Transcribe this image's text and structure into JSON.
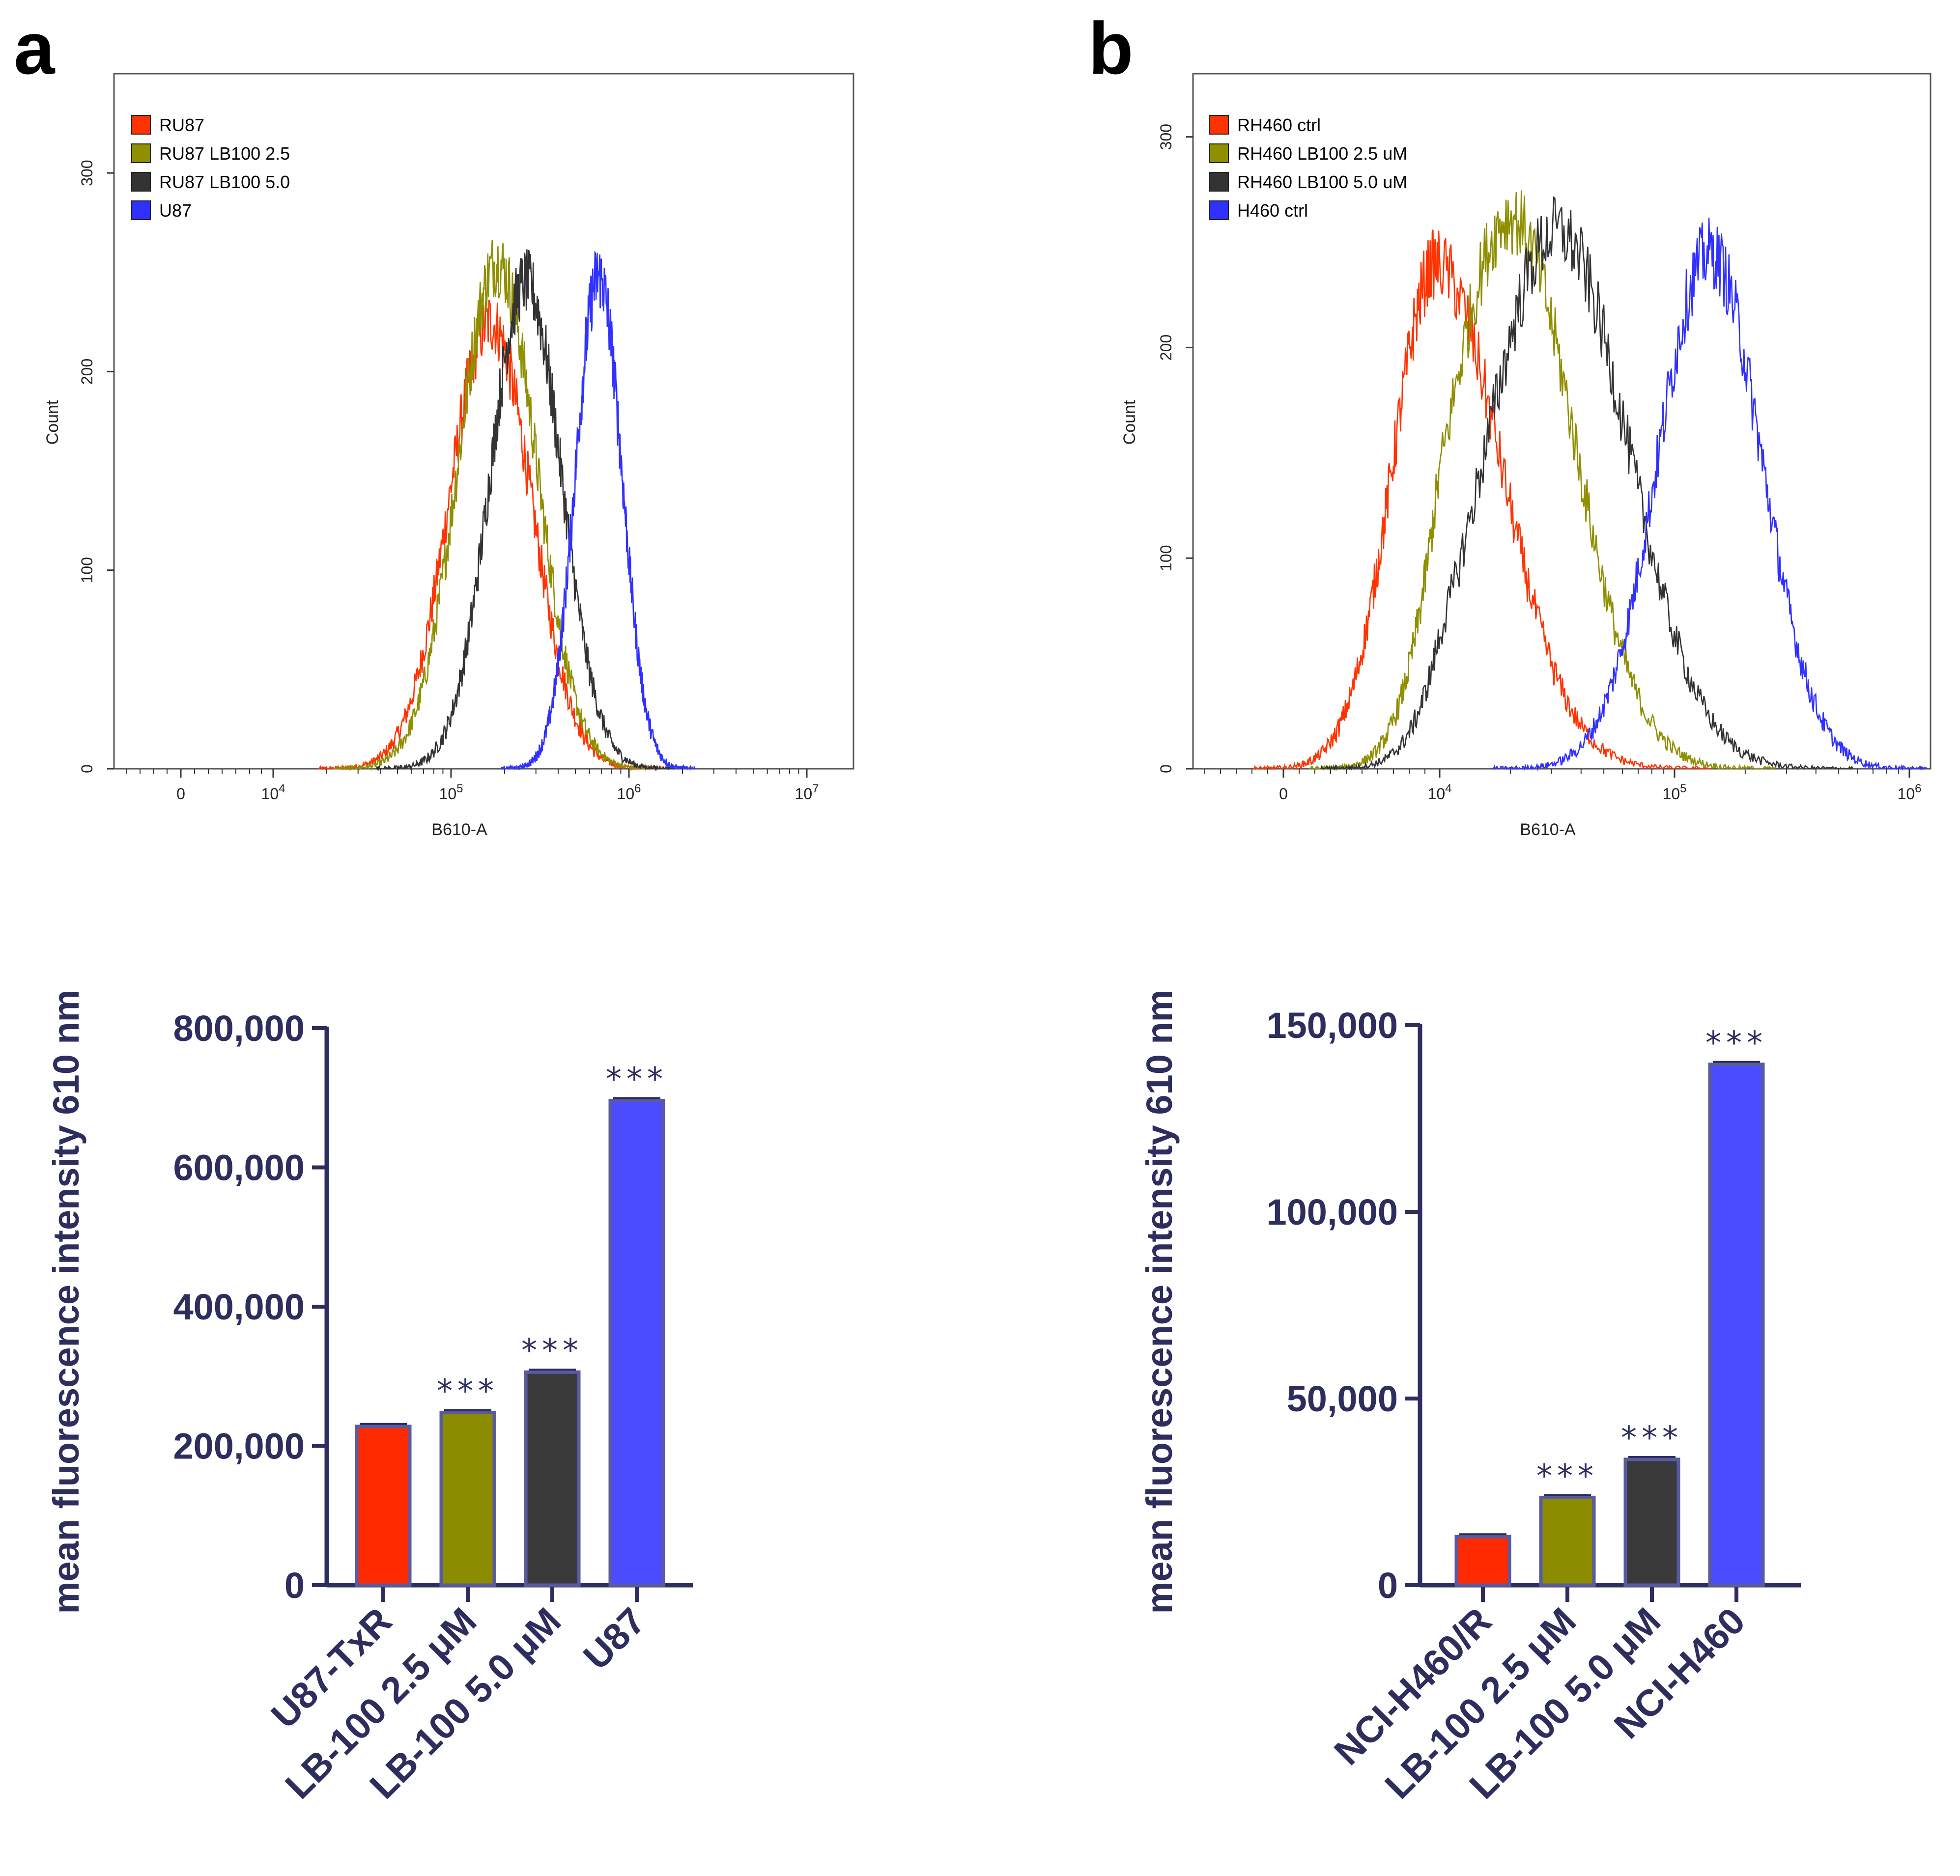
{
  "colors": {
    "red": "#ff2a00",
    "olive": "#8b8c00",
    "dark": "#3a3a3a",
    "blue": "#4b4bff",
    "navy": "#2d2d5e",
    "line_red": "#ff3300",
    "line_olive": "#8f8f00",
    "line_dark": "#333333",
    "line_blue": "#3030ff"
  },
  "chart_data": [
    {
      "panel": "a",
      "type": "line",
      "title": "",
      "xlabel": "B610-A",
      "ylabel": "Count",
      "ylim": [
        0,
        350
      ],
      "y_ticks": [
        0,
        100,
        200,
        300
      ],
      "x_scale": "log",
      "x_ticks": [
        "0",
        "10^4",
        "10^5",
        "10^6",
        "10^7"
      ],
      "series": [
        {
          "name": "RU87",
          "color_key": "line_red",
          "center_log": 5.22,
          "sigma": 0.23,
          "peak": 225
        },
        {
          "name": "RU87 LB100 2.5",
          "color_key": "line_olive",
          "center_log": 5.26,
          "sigma": 0.22,
          "peak": 255
        },
        {
          "name": "RU87 LB100 5.0",
          "color_key": "line_dark",
          "center_log": 5.42,
          "sigma": 0.2,
          "peak": 245
        },
        {
          "name": "U87",
          "color_key": "line_blue",
          "center_log": 5.83,
          "sigma": 0.13,
          "peak": 248
        }
      ]
    },
    {
      "panel": "b",
      "type": "line",
      "title": "",
      "xlabel": "B610-A",
      "ylabel": "Count",
      "ylim": [
        0,
        330
      ],
      "y_ticks": [
        0,
        100,
        200,
        300
      ],
      "x_scale": "log",
      "x_ticks": [
        "0",
        "10^4",
        "10^5",
        "10^6"
      ],
      "series": [
        {
          "name": "RH460 ctrl",
          "color_key": "line_red",
          "center_log": 3.98,
          "sigma": 0.28,
          "peak": 240
        },
        {
          "name": "RH460 LB100 2.5 uM",
          "color_key": "line_olive",
          "center_log": 4.3,
          "sigma": 0.27,
          "peak": 262
        },
        {
          "name": "RH460 LB100 5.0 uM",
          "color_key": "line_dark",
          "center_log": 4.5,
          "sigma": 0.3,
          "peak": 255
        },
        {
          "name": "H460 ctrl",
          "color_key": "line_blue",
          "center_log": 5.15,
          "sigma": 0.22,
          "peak": 245
        }
      ]
    },
    {
      "panel": "a-bar",
      "type": "bar",
      "title": "",
      "xlabel": "",
      "ylabel": "mean fluorescence intensity 610 nm",
      "ylim": [
        0,
        800000
      ],
      "y_ticks": [
        "0",
        "200,000",
        "400,000",
        "600,000",
        "800,000"
      ],
      "categories": [
        "U87-TxR",
        "LB-100 2.5 μM",
        "LB-100 5.0 μM",
        "U87"
      ],
      "values": [
        228000,
        248000,
        306000,
        696000
      ],
      "significance": [
        "",
        "***",
        "***",
        "***"
      ]
    },
    {
      "panel": "b-bar",
      "type": "bar",
      "title": "",
      "xlabel": "",
      "ylabel": "mean fluorescence intensity 610 nm",
      "ylim": [
        0,
        150000
      ],
      "y_ticks": [
        "0",
        "50,000",
        "100,000",
        "150,000"
      ],
      "categories": [
        "NCI-H460/R",
        "LB-100 2.5 μM",
        "LB-100 5.0 μM",
        "NCI-H460"
      ],
      "values": [
        13000,
        23500,
        33700,
        139500
      ],
      "significance": [
        "",
        "***",
        "***",
        "***"
      ]
    }
  ]
}
